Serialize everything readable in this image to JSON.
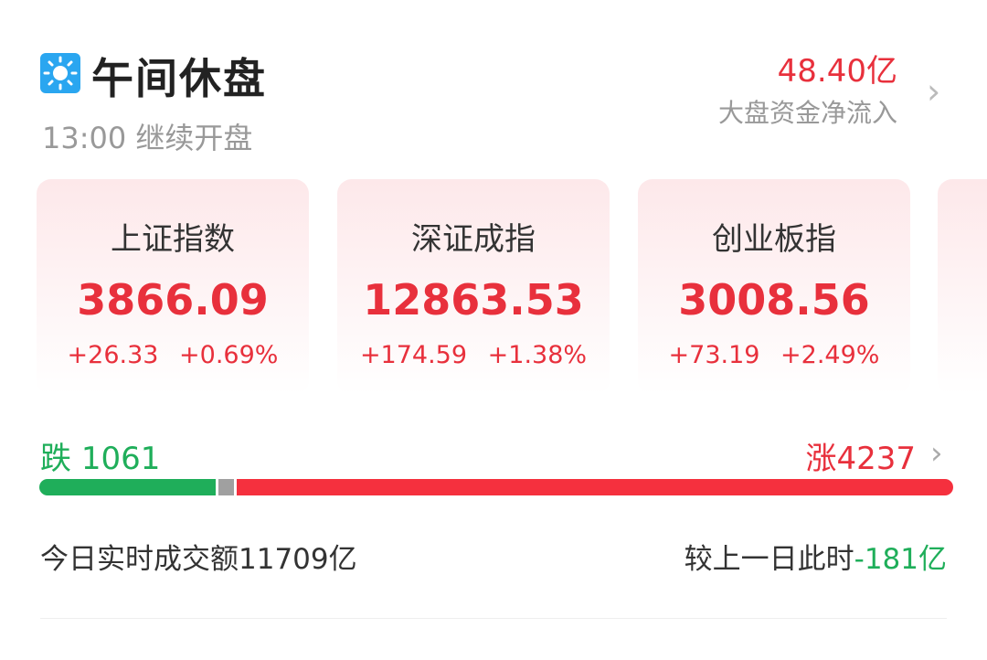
{
  "header": {
    "icon": "sun-icon",
    "title": "午间休盘",
    "time": "13:00",
    "status": "继续开盘",
    "flow_value": "48.40亿",
    "flow_label": "大盘资金净流入"
  },
  "indices": [
    {
      "name": "上证指数",
      "value": "3866.09",
      "change": "+26.33",
      "pct": "+0.69%"
    },
    {
      "name": "深证成指",
      "value": "12863.53",
      "change": "+174.59",
      "pct": "+1.38%"
    },
    {
      "name": "创业板指",
      "value": "3008.56",
      "change": "+73.19",
      "pct": "+2.49%"
    }
  ],
  "breadth": {
    "fall_label": "跌",
    "fall": "1061",
    "rise_label": "涨",
    "rise": "4237",
    "flat_fraction": 0.02
  },
  "volume": {
    "label": "今日实时成交额",
    "value": "11709亿",
    "compare_label": "较上一日此时",
    "compare_value": "-181亿"
  },
  "colors": {
    "up": "#e8303c",
    "down": "#1fae5a",
    "flat": "#a0a0a0",
    "icon": "#2aa6f0"
  }
}
